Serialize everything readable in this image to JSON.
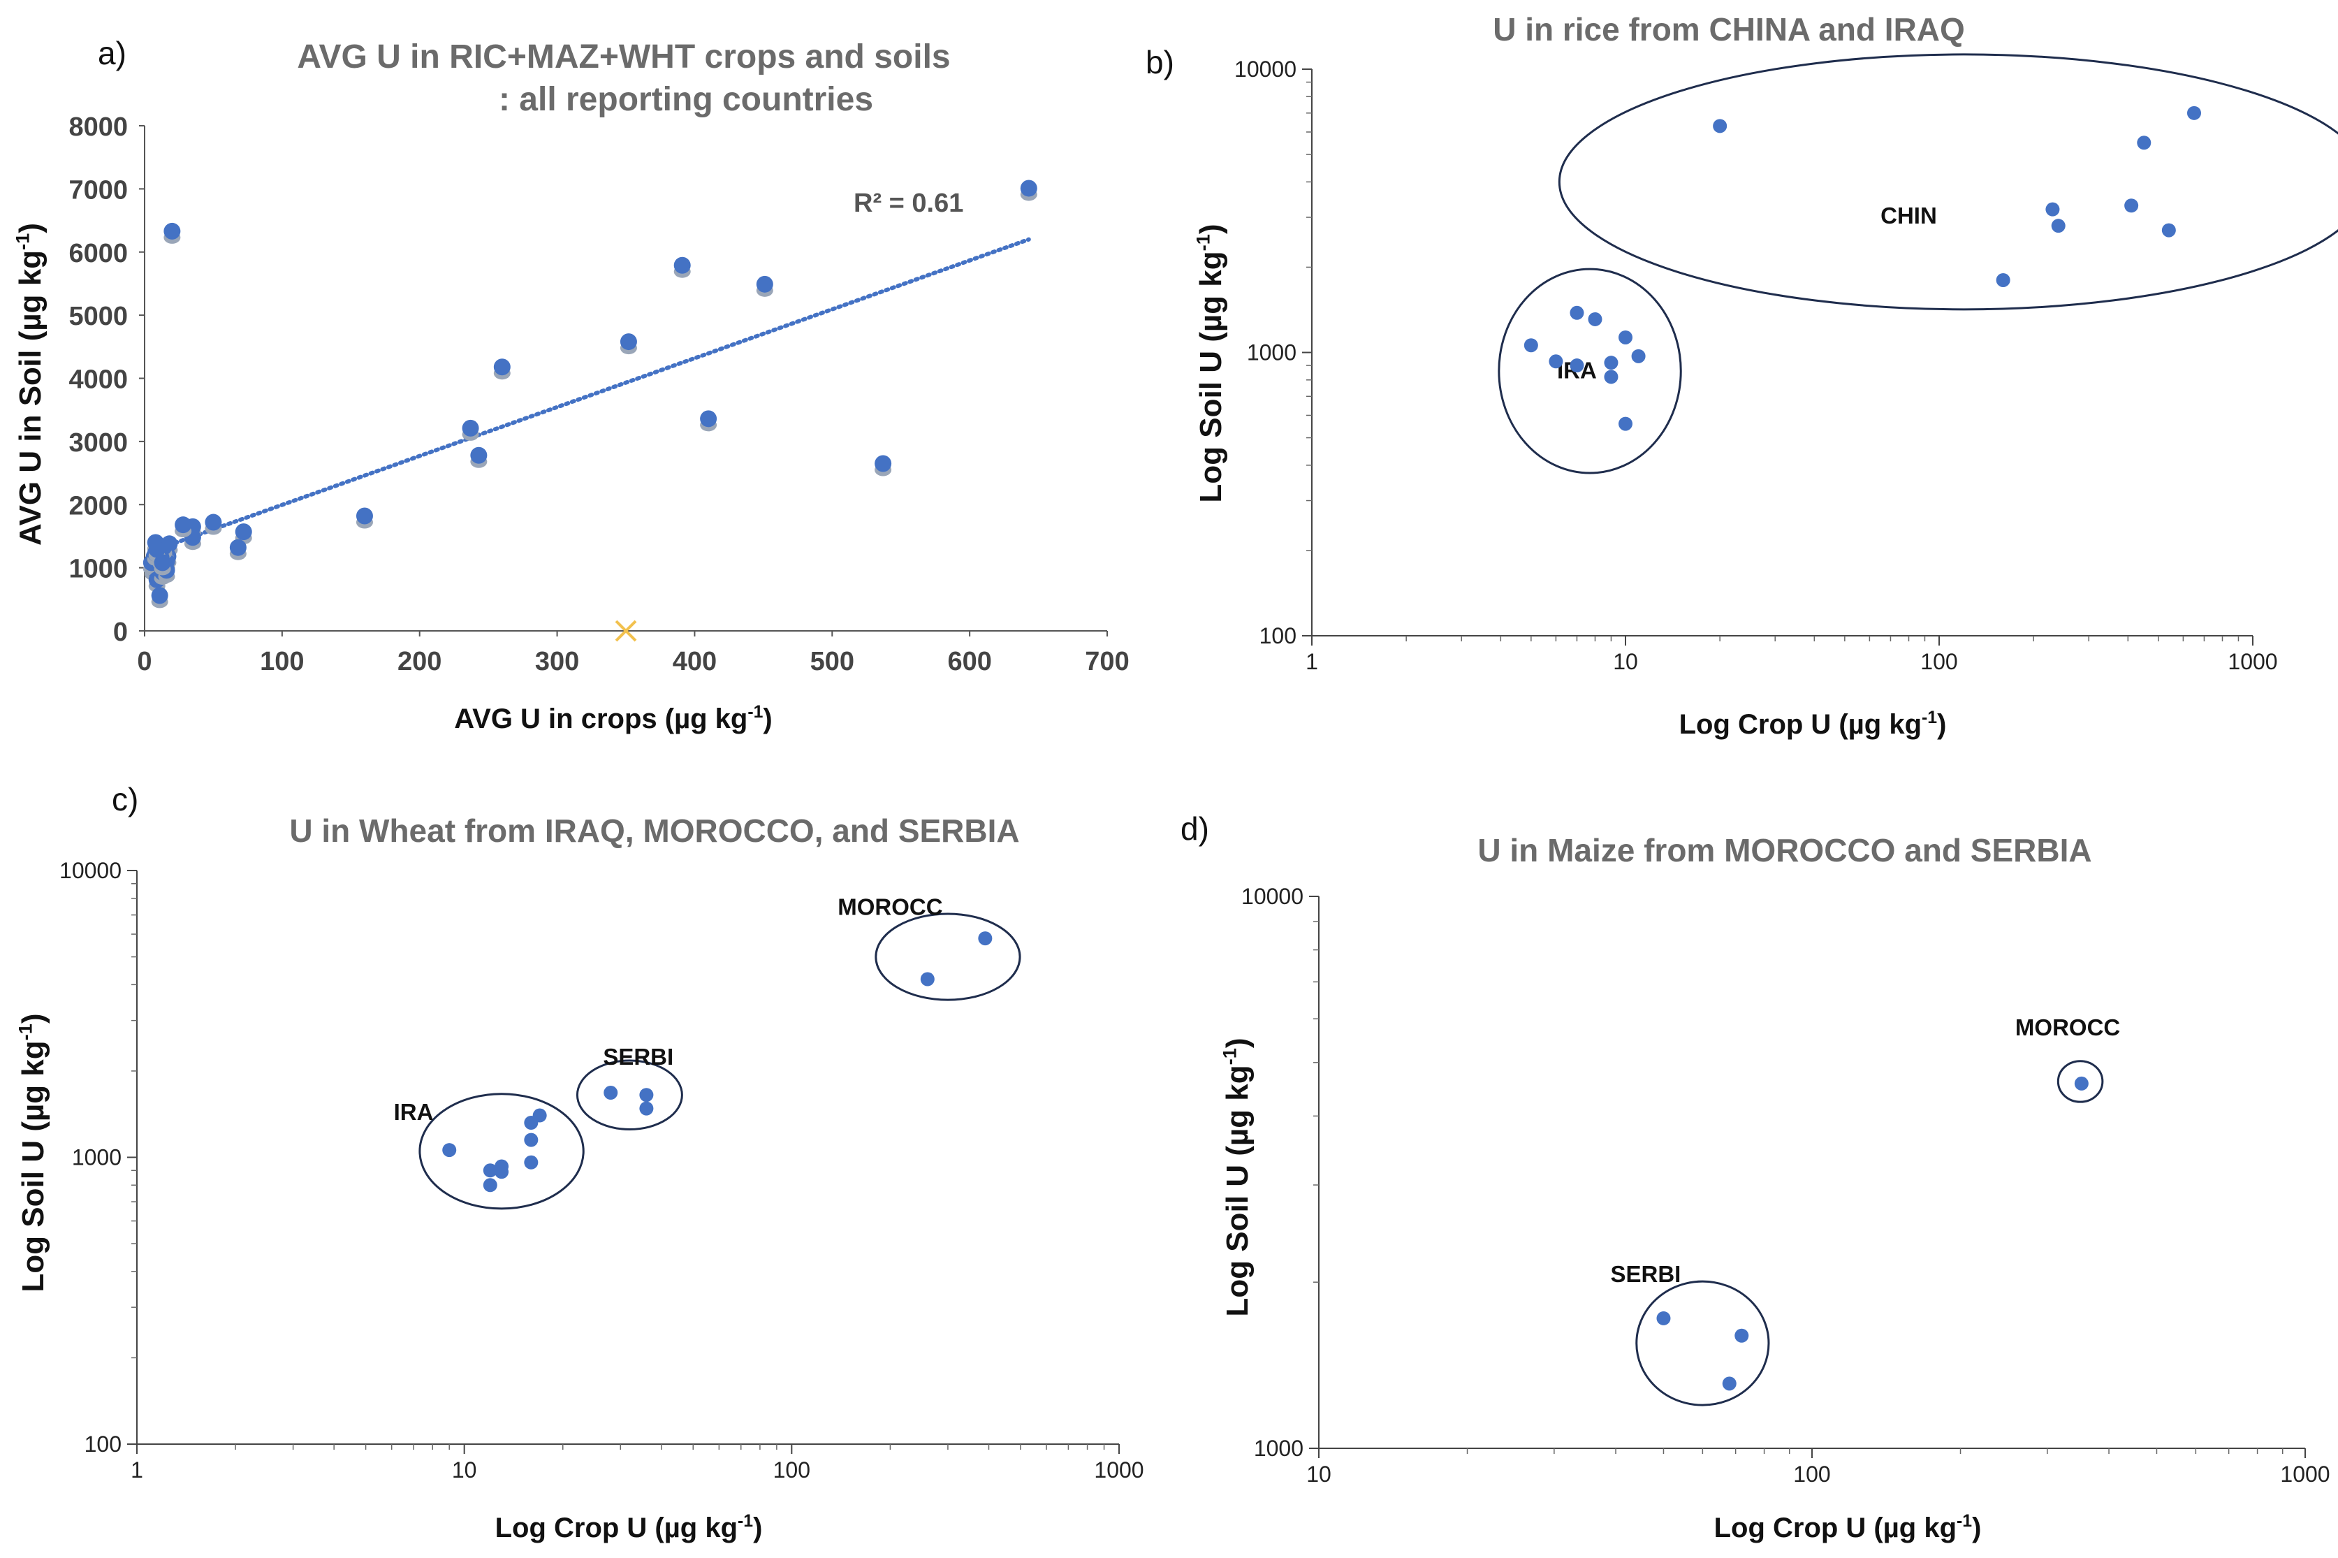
{
  "colors": {
    "point": "#4472c4",
    "point_shadow": "#9aa6b8",
    "trend": "#4472c4",
    "ellipse": "#1f2d4d",
    "marker_x": "#f2c14e"
  },
  "chart_data": [
    {
      "panel": "a)",
      "type": "scatter",
      "title": "AVG U in RIC+MAZ+WHT crops and soils",
      "subtitle": ": all reporting countries",
      "xlabel": "AVG U in crops (µg kg",
      "xlabel_sup": "-1",
      "xlabel_end": ")",
      "ylabel": "AVG U in Soil (µg kg",
      "ylabel_sup": "-1",
      "ylabel_end": ")",
      "xlim": [
        0,
        700
      ],
      "ylim": [
        0,
        8000
      ],
      "xticks": [
        0,
        100,
        200,
        300,
        400,
        500,
        600,
        700
      ],
      "yticks": [
        0,
        1000,
        2000,
        3000,
        4000,
        5000,
        6000,
        7000,
        8000
      ],
      "r2_label": "R² = 0.61",
      "trendline": {
        "x": [
          5,
          643
        ],
        "y": [
          1260,
          6200
        ]
      },
      "x_marker": {
        "x": 350,
        "y": 0
      },
      "points": [
        [
          20,
          6330
        ],
        [
          643,
          7010
        ],
        [
          391,
          5790
        ],
        [
          451,
          5490
        ],
        [
          352,
          4580
        ],
        [
          260,
          4180
        ],
        [
          410,
          3360
        ],
        [
          237,
          3210
        ],
        [
          243,
          2780
        ],
        [
          537,
          2650
        ],
        [
          160,
          1820
        ],
        [
          72,
          1570
        ],
        [
          68,
          1320
        ],
        [
          50,
          1720
        ],
        [
          35,
          1650
        ],
        [
          35,
          1480
        ],
        [
          28,
          1680
        ],
        [
          18,
          1380
        ],
        [
          17,
          1180
        ],
        [
          15,
          1270
        ],
        [
          12,
          1050
        ],
        [
          10,
          900
        ],
        [
          8,
          1400
        ],
        [
          7,
          1180
        ],
        [
          6,
          1000
        ],
        [
          5,
          1080
        ],
        [
          9,
          810
        ],
        [
          13,
          930
        ],
        [
          16,
          1100
        ],
        [
          11,
          560
        ],
        [
          14,
          1330
        ],
        [
          8,
          1230
        ],
        [
          12,
          1160
        ],
        [
          16,
          960
        ],
        [
          9,
          1290
        ],
        [
          13,
          1080
        ]
      ]
    },
    {
      "panel": "b)",
      "type": "scatter",
      "scale": "log-log",
      "title": "U in rice from CHINA and IRAQ",
      "xlabel": "Log Crop U (µg kg",
      "xlabel_sup": "-1",
      "xlabel_end": ")",
      "ylabel": "Log Soil U (µg kg",
      "ylabel_sup": "-1",
      "ylabel_end": ")",
      "xlim": [
        1,
        1000
      ],
      "ylim": [
        100,
        10000
      ],
      "xticks": [
        "1",
        "10",
        "100",
        "1000"
      ],
      "yticks": [
        "100",
        "1000",
        "10000"
      ],
      "groups": [
        {
          "name": "IRA",
          "label_at": [
            7,
            810
          ],
          "ellipse": {
            "cx": 7.7,
            "cy": 860,
            "rx_dec": 0.29,
            "ry_dec": 0.36
          },
          "points": [
            [
              5,
              1060
            ],
            [
              6,
              930
            ],
            [
              7,
              1380
            ],
            [
              7,
              900
            ],
            [
              8,
              1310
            ],
            [
              9,
              920
            ],
            [
              9,
              820
            ],
            [
              10,
              1130
            ],
            [
              10,
              560
            ],
            [
              11,
              970
            ]
          ]
        },
        {
          "name": "CHIN",
          "label_at": [
            80,
            2850
          ],
          "ellipse": {
            "cx": 120,
            "cy": 4000,
            "rx_dec": 1.29,
            "ry_dec": 0.45
          },
          "points": [
            [
              20,
              6300
            ],
            [
              650,
              7000
            ],
            [
              450,
              5500
            ],
            [
              230,
              3200
            ],
            [
              240,
              2800
            ],
            [
              410,
              3300
            ],
            [
              540,
              2700
            ],
            [
              160,
              1800
            ]
          ]
        }
      ]
    },
    {
      "panel": "c)",
      "type": "scatter",
      "scale": "log-log",
      "title": "U in Wheat from IRAQ, MOROCCO, and SERBIA",
      "xlabel": "Log Crop U (µg kg",
      "xlabel_sup": "-1",
      "xlabel_end": ")",
      "ylabel": "Log Soil U (µg kg",
      "ylabel_sup": "-1",
      "ylabel_end": ")",
      "xlim": [
        1,
        1000
      ],
      "ylim": [
        100,
        10000
      ],
      "xticks": [
        "1",
        "10",
        "100",
        "1000"
      ],
      "yticks": [
        "100",
        "1000",
        "10000"
      ],
      "groups": [
        {
          "name": "IRA",
          "label_at": [
            7,
            1350
          ],
          "ellipse": {
            "cx": 13,
            "cy": 1050,
            "rx_dec": 0.25,
            "ry_dec": 0.2
          },
          "points": [
            [
              9,
              1060
            ],
            [
              12,
              900
            ],
            [
              12,
              800
            ],
            [
              13,
              930
            ],
            [
              13,
              890
            ],
            [
              16,
              1320
            ],
            [
              16,
              1150
            ],
            [
              16,
              960
            ],
            [
              17,
              1400
            ]
          ]
        },
        {
          "name": "SERBI",
          "label_at": [
            34,
            2100
          ],
          "ellipse": {
            "cx": 32,
            "cy": 1650,
            "rx_dec": 0.16,
            "ry_dec": 0.12
          },
          "points": [
            [
              28,
              1680
            ],
            [
              36,
              1650
            ],
            [
              36,
              1480
            ]
          ]
        },
        {
          "name": "MOROCC",
          "label_at": [
            200,
            7000
          ],
          "ellipse": {
            "cx": 300,
            "cy": 5000,
            "rx_dec": 0.22,
            "ry_dec": 0.15
          },
          "points": [
            [
              260,
              4180
            ],
            [
              390,
              5800
            ]
          ]
        }
      ]
    },
    {
      "panel": "d)",
      "type": "scatter",
      "scale": "log-log",
      "title": "U in Maize from MOROCCO and SERBIA",
      "xlabel": "Log Crop U (µg kg",
      "xlabel_sup": "-1",
      "xlabel_end": ")",
      "ylabel": "Log Soil U (µg kg",
      "ylabel_sup": "-1",
      "ylabel_end": ")",
      "xlim": [
        10,
        1000
      ],
      "ylim": [
        1000,
        10000
      ],
      "xticks": [
        "10",
        "100",
        "1000"
      ],
      "yticks": [
        "1000",
        "10000"
      ],
      "groups": [
        {
          "name": "SERBI",
          "label_at": [
            46,
            2000
          ],
          "ellipse": {
            "cx": 60,
            "cy": 1550,
            "rx_dec": 0.134,
            "ry_dec": 0.112
          },
          "points": [
            [
              50,
              1720
            ],
            [
              72,
              1600
            ],
            [
              68,
              1310
            ]
          ]
        },
        {
          "name": "MOROCC",
          "label_at": [
            330,
            5600
          ],
          "ellipse": {
            "cx": 350,
            "cy": 4620,
            "rx_dec": 0.045,
            "ry_dec": 0.037
          },
          "points": [
            [
              352,
              4580
            ]
          ]
        }
      ]
    }
  ]
}
